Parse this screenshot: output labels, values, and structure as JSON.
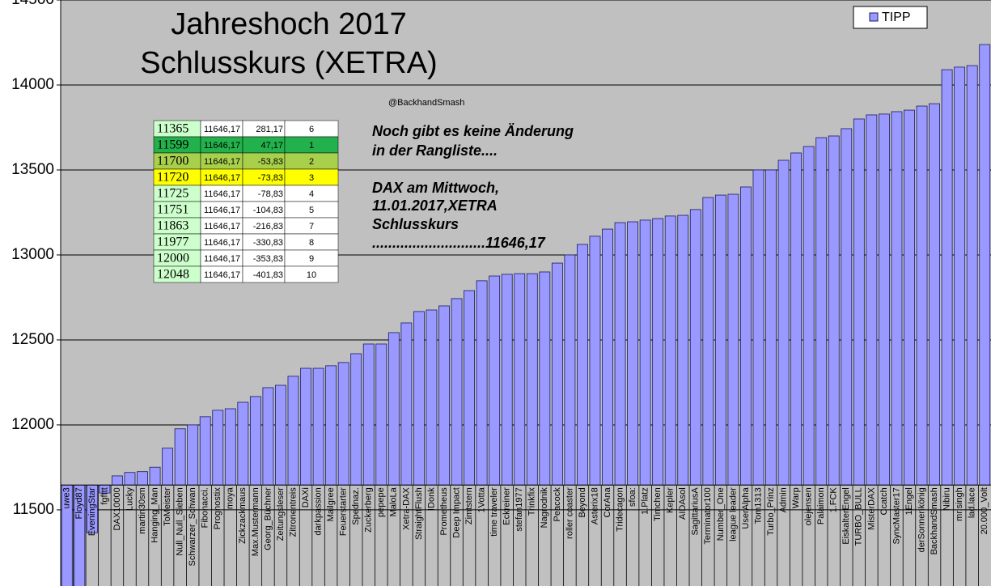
{
  "chart_data": {
    "type": "bar",
    "title": [
      "Jahreshoch 2017",
      "Schlusskurs (XETRA)"
    ],
    "credit": "@BackhandSmash",
    "annotation": [
      "Noch gibt es keine Änderung",
      "in der Rangliste....",
      "DAX am Mittwoch,",
      "11.01.2017,XETRA",
      "Schlusskurs",
      "............................11646,17"
    ],
    "categories": [
      "uwe3",
      "Floyd87",
      "EveningStar",
      "fgfttt",
      "DAX10000",
      "Lucky",
      "martin30sm",
      "Hanging_Man",
      "ToMeister",
      "Null_Null_Sieben",
      "Schwarzer_Schwan",
      "Fibonacci.",
      "Prognostix",
      "moya",
      "Zickzackmaus",
      "Max.Mustermann",
      "Georg_Büchner",
      "Zeitungsleser",
      "Zitronentreis",
      "DAXi",
      "darkpassion",
      "Mailgree",
      "Feuerstarter",
      "Spednaz.",
      "Zuckerberg",
      "pepepe",
      "MaloLa",
      "Xetra-DAX",
      "StraightFlush",
      "IDonk",
      "Prometheus",
      "Deep Impact",
      "Zimtstern",
      "1Votta",
      "time traveler",
      "Eckreiner",
      "stefan1977",
      "Trinkfix",
      "Nagrodnik",
      "Peacock",
      "roller coaster",
      "Beyond",
      "Asterix18",
      "CorAna",
      "Tridecagon",
      "sfoa:",
      "1.Platz",
      "Timchen",
      "Kepler",
      "AIDAsol",
      "SagittariusA",
      "Terminator100",
      "Number_One",
      "league leader",
      "UserAlpha",
      "Tom1313",
      "Turbo_Prinz",
      "Admin",
      "Warp",
      "olejensen",
      "Palaimon",
      "1.FCK",
      "EiskalterEngel",
      "TURBO_BULL",
      "MisterDAX",
      "Ccatch",
      "SyncMaster17",
      "1Engel",
      "derSonnenkönig",
      "BackhandSmash",
      "Nibiru",
      "mr.singh",
      "lad.lace",
      "20.000_Volt"
    ],
    "series": [
      {
        "name": "TIPP",
        "color": "#9999ff",
        "values": [
          11000,
          11000,
          11365,
          11599,
          11700,
          11720,
          11725,
          11751,
          11863,
          11977,
          12000,
          12048,
          12086,
          12095,
          12133,
          12167,
          12219,
          12233,
          12286,
          12333,
          12333,
          12348,
          12367,
          12419,
          12476,
          12476,
          12543,
          12600,
          12667,
          12676,
          12700,
          12743,
          12790,
          12848,
          12876,
          12886,
          12890,
          12890,
          12900,
          12952,
          13000,
          13062,
          13110,
          13152,
          13190,
          13195,
          13205,
          13214,
          13229,
          13233,
          13267,
          13338,
          13352,
          13357,
          13400,
          13500,
          13500,
          13557,
          13600,
          13638,
          13690,
          13700,
          13743,
          13800,
          13824,
          13829,
          13843,
          13852,
          13876,
          13890,
          14090,
          14105,
          14114,
          14238
        ]
      }
    ],
    "axis_crossing": 11646.17,
    "ylim": [
      11052,
      14500
    ],
    "yticks": [
      11500,
      12000,
      12500,
      13000,
      13500,
      14000,
      14500
    ],
    "grid": true,
    "legend": "top-right"
  },
  "table": {
    "rows": [
      [
        "11365",
        "11646,17",
        "281,17",
        "6"
      ],
      [
        "11599",
        "11646,17",
        "47,17",
        "1"
      ],
      [
        "11700",
        "11646,17",
        "-53,83",
        "2"
      ],
      [
        "11720",
        "11646,17",
        "-73,83",
        "3"
      ],
      [
        "11725",
        "11646,17",
        "-78,83",
        "4"
      ],
      [
        "11751",
        "11646,17",
        "-104,83",
        "5"
      ],
      [
        "11863",
        "11646,17",
        "-216,83",
        "7"
      ],
      [
        "11977",
        "11646,17",
        "-330,83",
        "8"
      ],
      [
        "12000",
        "11646,17",
        "-353,83",
        "9"
      ],
      [
        "12048",
        "11646,17",
        "-401,83",
        "10"
      ]
    ],
    "first_column_color": "#ccffcc",
    "row_colors": [
      "#ffffff",
      "#22b14c",
      "#a8d04c",
      "#ffff00",
      "#ffffff",
      "#ffffff",
      "#ffffff",
      "#ffffff",
      "#ffffff",
      "#ffffff"
    ]
  }
}
